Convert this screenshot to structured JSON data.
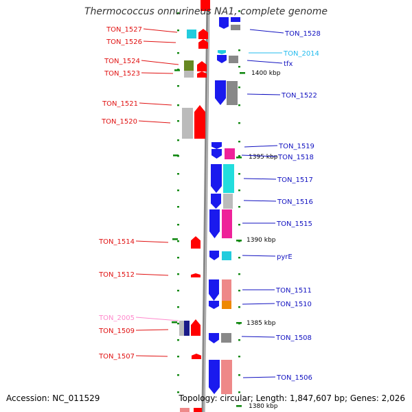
{
  "title": "Thermococcus onnurineus NA1, complete genome",
  "footer": {
    "accession": "Accession: NC_011529",
    "summary": "Topology: circular; Length: 1,847,607 bp; Genes: 2,026"
  },
  "scale_labels": [
    "1400 kbp",
    "1395 kbp",
    "1390 kbp",
    "1385 kbp",
    "1380 kbp"
  ],
  "genes_left": [
    {
      "label": "TON_1527",
      "color": "#e01010"
    },
    {
      "label": "TON_1526",
      "color": "#e01010"
    },
    {
      "label": "TON_1524",
      "color": "#e01010"
    },
    {
      "label": "TON_1523",
      "color": "#e01010"
    },
    {
      "label": "TON_1521",
      "color": "#e01010"
    },
    {
      "label": "TON_1520",
      "color": "#e01010"
    },
    {
      "label": "TON_1514",
      "color": "#e01010"
    },
    {
      "label": "TON_1512",
      "color": "#e01010"
    },
    {
      "label": "TON_2005",
      "color": "#ff88cc"
    },
    {
      "label": "TON_1509",
      "color": "#e01010"
    },
    {
      "label": "TON_1507",
      "color": "#e01010"
    }
  ],
  "genes_right": [
    {
      "label": "TON_1528",
      "color": "#1010c0"
    },
    {
      "label": "TON_2014",
      "color": "#22bbee"
    },
    {
      "label": "tfx",
      "color": "#1010c0"
    },
    {
      "label": "TON_1522",
      "color": "#1010c0"
    },
    {
      "label": "TON_1519",
      "color": "#1010c0"
    },
    {
      "label": "TON_1518",
      "color": "#1010c0"
    },
    {
      "label": "TON_1517",
      "color": "#1010c0"
    },
    {
      "label": "TON_1516",
      "color": "#1010c0"
    },
    {
      "label": "TON_1515",
      "color": "#1010c0"
    },
    {
      "label": "pyrE",
      "color": "#1010c0"
    },
    {
      "label": "TON_1511",
      "color": "#1010c0"
    },
    {
      "label": "TON_1510",
      "color": "#1010c0"
    },
    {
      "label": "TON_1508",
      "color": "#1010c0"
    },
    {
      "label": "TON_1506",
      "color": "#1010c0"
    }
  ],
  "colors": {
    "forward_strand": "#ff0000",
    "reverse_strand": "#1a1aee",
    "backbone": "#888888",
    "tick": "#118811",
    "cyan": "#22ccdd",
    "magenta": "#ee2299",
    "gray": "#888888",
    "light_gray": "#bbbbbb",
    "olive": "#668822",
    "salmon": "#ee8888",
    "orange": "#ee8800",
    "navy": "#1a1a88"
  }
}
